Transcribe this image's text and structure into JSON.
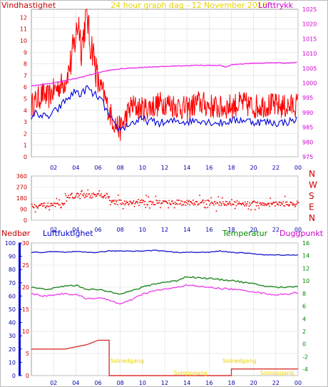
{
  "chart_data": [
    {
      "id": "wind-pressure",
      "type": "line",
      "title": "24 hour graph dag - 12 November 2018",
      "left_label": "Vindhastighet",
      "right_label": "Lufttrykk",
      "x_ticks": [
        "02",
        "04",
        "06",
        "08",
        "10",
        "12",
        "14",
        "16",
        "18",
        "20",
        "22",
        "00"
      ],
      "y_left": {
        "ticks": [
          "0",
          "1",
          "2",
          "3",
          "4",
          "5",
          "6",
          "7",
          "8",
          "9",
          "10",
          "11",
          "12"
        ],
        "range": [
          0,
          12.7
        ]
      },
      "y_right": {
        "ticks": [
          "975",
          "980",
          "985",
          "990",
          "995",
          "1000",
          "1005",
          "1010",
          "1015",
          "1020",
          "1025"
        ],
        "range": [
          975,
          1025
        ]
      },
      "series": [
        {
          "key": "wind_gust",
          "color": "#ff0000",
          "x": [
            0,
            0.5,
            1,
            1.5,
            2,
            2.5,
            3,
            3.5,
            4,
            4.25,
            4.5,
            4.75,
            5,
            5.25,
            5.5,
            5.75,
            6,
            6.5,
            7,
            7.5,
            8,
            9,
            10,
            11,
            12,
            13,
            14,
            15,
            16,
            17,
            18,
            19,
            20,
            21,
            22,
            23,
            24
          ],
          "y": [
            4.5,
            5,
            5.5,
            5.2,
            5.8,
            6.2,
            6.5,
            8,
            10.5,
            12,
            9.5,
            11,
            12.8,
            10,
            9.5,
            8,
            6.5,
            5.5,
            4,
            3,
            2.5,
            4.5,
            4.2,
            4.5,
            4.8,
            4.5,
            4.2,
            4.8,
            4.5,
            4.3,
            4.5,
            4.7,
            4.4,
            4.6,
            4.5,
            4.4,
            4.6
          ]
        },
        {
          "key": "wind_avg",
          "color": "#0000dd",
          "x": [
            0,
            0.5,
            1,
            1.5,
            2,
            2.5,
            3,
            3.5,
            4,
            4.5,
            5,
            5.5,
            6,
            6.5,
            7,
            7.5,
            8,
            9,
            10,
            11,
            12,
            13,
            14,
            15,
            16,
            17,
            18,
            19,
            20,
            21,
            22,
            23,
            24
          ],
          "y": [
            3.5,
            3.8,
            3.5,
            3.4,
            3.8,
            4.2,
            4.8,
            5.2,
            5.7,
            5.3,
            6,
            5.4,
            5.2,
            4.5,
            3.5,
            2.6,
            2.4,
            2.9,
            3.2,
            3,
            2.9,
            3.1,
            3,
            3.2,
            3,
            2.9,
            3.1,
            3.2,
            3,
            3,
            2.9,
            3,
            3.2
          ]
        },
        {
          "key": "pressure",
          "color": "#ee33ee",
          "axis": "right",
          "x": [
            0,
            1,
            2,
            3,
            4,
            5,
            6,
            7,
            8,
            9,
            10,
            11,
            12,
            13,
            14,
            15,
            16,
            17,
            17.5,
            18,
            19,
            20,
            21,
            22,
            23,
            24
          ],
          "y": [
            999,
            999.5,
            1000,
            1000.8,
            1001.5,
            1002.5,
            1003.5,
            1004.3,
            1004.8,
            1005.1,
            1005.3,
            1005.5,
            1005.6,
            1005.8,
            1005.9,
            1006,
            1006,
            1006,
            1005.3,
            1006.2,
            1006.5,
            1006.7,
            1006.8,
            1006.9,
            1006.8,
            1007
          ]
        }
      ]
    },
    {
      "id": "wind-direction",
      "type": "scatter",
      "y_ticks": [
        "0",
        "90",
        "180",
        "270",
        "360"
      ],
      "range": [
        0,
        360
      ],
      "compass": [
        "N",
        "W",
        "S",
        "E",
        "N"
      ],
      "color": "#ee0000",
      "x_ticks": [
        "02",
        "04",
        "06",
        "08",
        "10",
        "12",
        "14",
        "16",
        "18",
        "20",
        "22",
        "00"
      ],
      "series": [
        {
          "x_start": 0,
          "x_end": 3,
          "center": 120
        },
        {
          "x_start": 3,
          "x_end": 7,
          "center": 200
        },
        {
          "x_start": 7,
          "x_end": 16,
          "center": 145
        },
        {
          "x_start": 16,
          "x_end": 24,
          "center": 135
        }
      ]
    },
    {
      "id": "temp-humidity-rain",
      "type": "line",
      "labels": {
        "rain": "Nedbør",
        "humidity": "Luftfuktighet",
        "temperature": "Temperatur",
        "dewpoint": "Duggpunkt"
      },
      "y_rain_ticks": [
        "0",
        "10",
        "20",
        "30",
        "40",
        "50",
        "60",
        "70",
        "80",
        "90",
        "100"
      ],
      "y_rain_range": [
        0,
        100
      ],
      "y_left": {
        "ticks": [
          "0",
          "5",
          "10",
          "15",
          "20",
          "25",
          "30"
        ],
        "range": [
          0,
          30
        ]
      },
      "y_right": {
        "ticks": [
          "-4",
          "-2",
          "0",
          "2",
          "4",
          "6",
          "8",
          "10",
          "12",
          "14",
          "16"
        ],
        "range": [
          -5,
          16
        ]
      },
      "x_ticks": [
        "02",
        "04",
        "06",
        "08",
        "10",
        "12",
        "14",
        "16",
        "18",
        "20",
        "22",
        "00"
      ],
      "annotations": [
        {
          "text": "Solnedgang",
          "x": 7.1,
          "row": 0
        },
        {
          "text": "Soloppgang",
          "x": 12.8,
          "row": 1
        },
        {
          "text": "Solnedgang",
          "x": 17.2,
          "row": 0
        },
        {
          "text": "Soloppgang",
          "x": 20.6,
          "row": 1
        }
      ],
      "series": [
        {
          "key": "humidity",
          "color": "#2222cc",
          "axis": "rain",
          "x": [
            0,
            1,
            2,
            3,
            4,
            5,
            6,
            7,
            8,
            9,
            10,
            11,
            12,
            13,
            14,
            15,
            16,
            17,
            18,
            19,
            20,
            21,
            22,
            23,
            24
          ],
          "y": [
            93,
            93,
            93.5,
            93,
            93.5,
            93,
            93,
            94,
            94,
            94,
            94,
            94.5,
            94,
            93,
            93,
            93,
            93,
            94,
            93,
            92.5,
            92,
            91,
            91,
            91,
            91
          ]
        },
        {
          "key": "temperature",
          "color": "#228822",
          "axis": "right",
          "x": [
            0,
            1,
            2,
            3,
            4,
            5,
            6,
            7,
            8,
            9,
            10,
            11,
            12,
            13,
            14,
            15,
            16,
            17,
            18,
            19,
            20,
            21,
            22,
            23,
            24
          ],
          "y": [
            9,
            8.7,
            8.8,
            9.2,
            9.3,
            8.7,
            8.6,
            8.3,
            8,
            8.4,
            9,
            9.5,
            9.8,
            10,
            10.7,
            10.5,
            10.4,
            10.2,
            10.1,
            9.8,
            9.5,
            9.2,
            9,
            9,
            9.2
          ]
        },
        {
          "key": "dewpoint",
          "color": "#ee44ee",
          "axis": "right",
          "x": [
            0,
            1,
            2,
            3,
            4,
            5,
            6,
            7,
            8,
            9,
            10,
            11,
            12,
            13,
            14,
            15,
            16,
            17,
            18,
            19,
            20,
            21,
            22,
            23,
            24
          ],
          "y": [
            8,
            7.6,
            7.8,
            8,
            7.8,
            7.2,
            7.3,
            7,
            6.3,
            7,
            7.9,
            8.4,
            8.7,
            8.9,
            9.4,
            9.1,
            9,
            8.8,
            8.7,
            8.5,
            8.3,
            8,
            7.8,
            7.9,
            8.2
          ]
        },
        {
          "key": "rain",
          "color": "#dd3333",
          "axis": "left",
          "step": true,
          "x": [
            0,
            3,
            5,
            6,
            7,
            7,
            18,
            18,
            24
          ],
          "y": [
            6,
            6,
            7,
            8,
            8,
            0,
            0,
            1.5,
            1.5
          ]
        }
      ]
    }
  ]
}
